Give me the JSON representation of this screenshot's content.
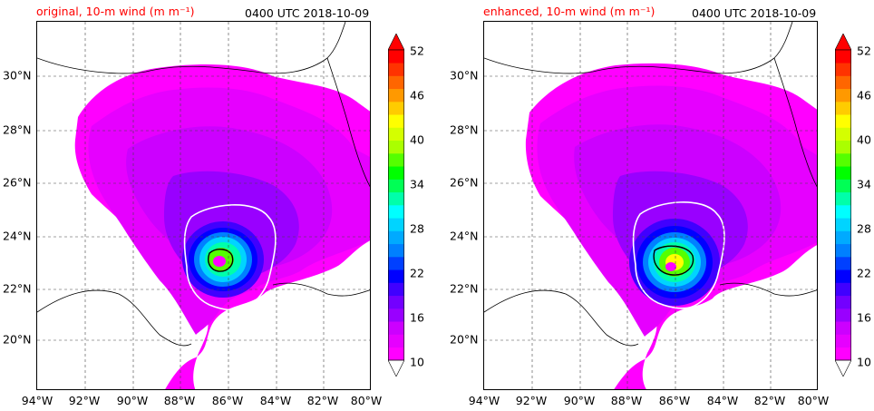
{
  "panels": [
    {
      "id": "original",
      "title_left": "original, 10-m wind (m m⁻¹)",
      "title_right": "0400 UTC 2018-10-09"
    },
    {
      "id": "enhanced",
      "title_left": "enhanced, 10-m wind (m m⁻¹)",
      "title_right": "0400 UTC 2018-10-09"
    }
  ],
  "axes": {
    "lon_ticks": [
      "94°W",
      "92°W",
      "90°W",
      "88°W",
      "86°W",
      "84°W",
      "82°W",
      "80°W"
    ],
    "lat_ticks": [
      "30°N",
      "28°N",
      "26°N",
      "24°N",
      "22°N",
      "20°N"
    ],
    "lon_range": [
      -94,
      -80
    ],
    "lat_range": [
      18.2,
      32.2
    ]
  },
  "colorbar": {
    "tick_labels": [
      "52",
      "46",
      "40",
      "34",
      "28",
      "22",
      "16",
      "10"
    ],
    "range": [
      10,
      52
    ],
    "extend": "both",
    "colors": [
      "#ff00ff",
      "#e600ff",
      "#cc00ff",
      "#9900ff",
      "#7300ff",
      "#4000ff",
      "#0000ff",
      "#0040ff",
      "#0080ff",
      "#00aaff",
      "#00d4ff",
      "#00ffff",
      "#00ffaa",
      "#00ff55",
      "#00ff00",
      "#55ff00",
      "#aaff00",
      "#d4ff00",
      "#ffff00",
      "#ffcc00",
      "#ff9900",
      "#ff6600",
      "#ff3300",
      "#ff0000"
    ]
  },
  "legend_colors": {
    "land_lines": "#000000",
    "contour_white": "#ffffff",
    "background": "#ffffff"
  }
}
